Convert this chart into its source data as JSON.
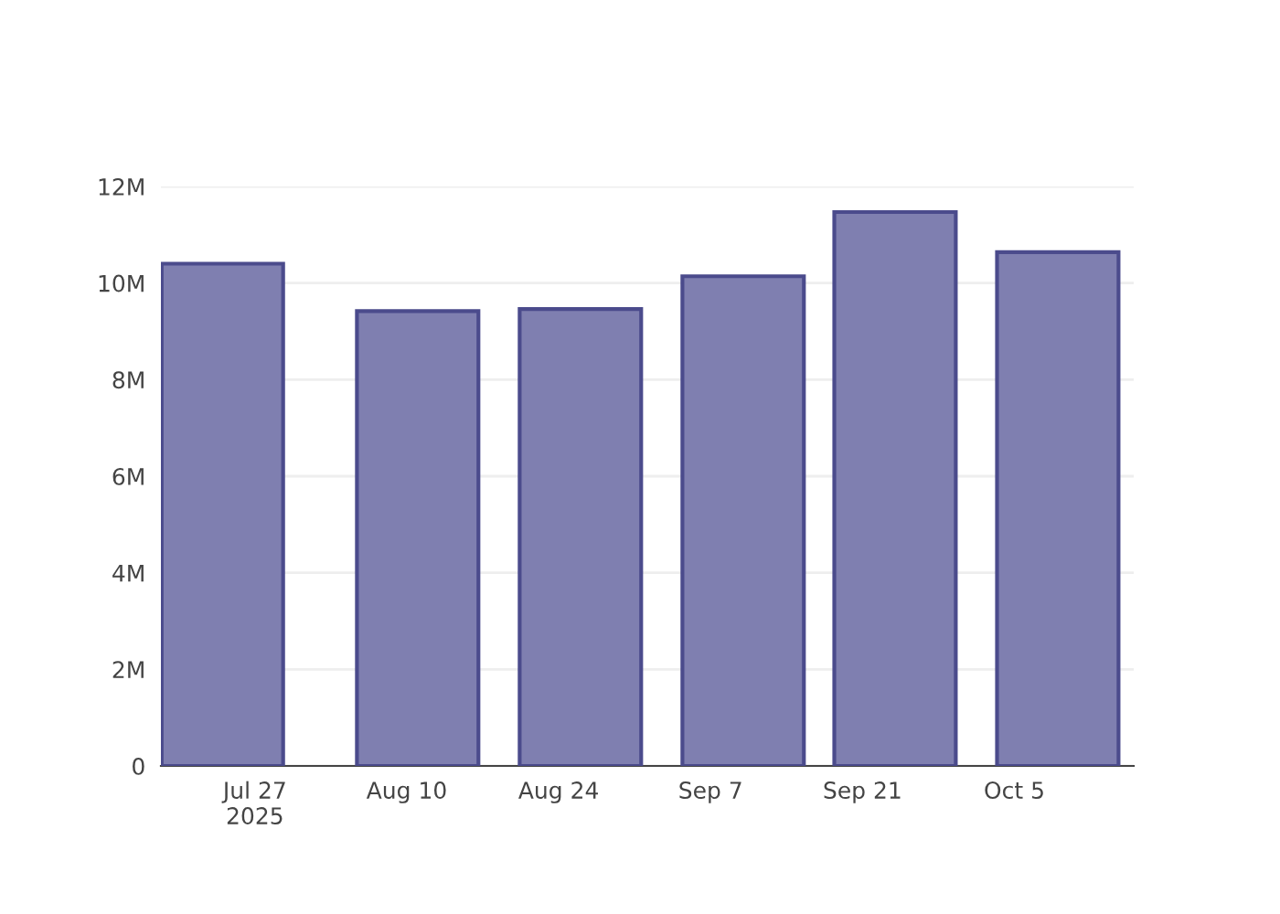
{
  "chart_data": {
    "type": "bar",
    "x": [
      "2025-07-24",
      "2025-08-11",
      "2025-08-26",
      "2025-09-10",
      "2025-09-24",
      "2025-10-09"
    ],
    "series": [
      {
        "color": "#7f7fb0",
        "values": [
          10400000,
          9420000,
          9460000,
          10140000,
          11470000,
          10640000
        ]
      }
    ],
    "xlim": [
      "2025-07-18T08:00",
      "2025-10-16T00:00"
    ],
    "xticks": [
      {
        "value": "2025-07-27",
        "label": "Jul 27\n2025"
      },
      {
        "value": "2025-08-10",
        "label": "Aug 10"
      },
      {
        "value": "2025-08-24",
        "label": "Aug 24"
      },
      {
        "value": "2025-09-07",
        "label": "Sep 7"
      },
      {
        "value": "2025-09-21",
        "label": "Sep 21"
      },
      {
        "value": "2025-10-05",
        "label": "Oct 5"
      }
    ],
    "ylim": [
      0,
      12000000
    ],
    "yticks": [
      {
        "value": 0,
        "label": "0"
      },
      {
        "value": 2000000,
        "label": "2M"
      },
      {
        "value": 4000000,
        "label": "4M"
      },
      {
        "value": 6000000,
        "label": "6M"
      },
      {
        "value": 8000000,
        "label": "8M"
      },
      {
        "value": 10000000,
        "label": "10M"
      },
      {
        "value": 12000000,
        "label": "12M"
      }
    ],
    "grid": "y"
  }
}
